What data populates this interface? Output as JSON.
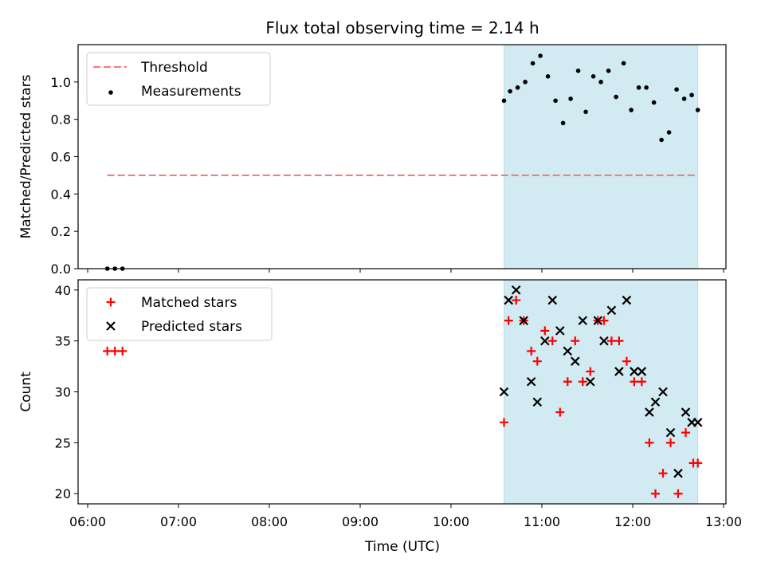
{
  "figure": {
    "title": "Flux total observing time = 2.14 h",
    "xlabel": "Time (UTC)"
  },
  "colors": {
    "background": "#ffffff",
    "shade": "#add8e6",
    "threshold": "#f08080",
    "measurements": "#000000",
    "matched": "#ff0000",
    "predicted": "#000000"
  },
  "chart_data": [
    {
      "type": "scatter",
      "panel": "top",
      "ylabel": "Matched/Predicted stars",
      "xlim": [
        "06:00",
        "13:00"
      ],
      "ylim": [
        0,
        1.2
      ],
      "x_ticks": [
        "06:00",
        "07:00",
        "08:00",
        "09:00",
        "10:00",
        "11:00",
        "12:00",
        "13:00"
      ],
      "y_ticks": [
        "0.0",
        "0.2",
        "0.4",
        "0.6",
        "0.8",
        "1.0"
      ],
      "shaded_interval": [
        "10:35",
        "12:43"
      ],
      "legend_position": "upper left",
      "legend": [
        "Threshold",
        "Measurements"
      ],
      "series": [
        {
          "name": "Threshold",
          "type": "dashed-line",
          "x": [
            "06:13",
            "12:43"
          ],
          "y": [
            0.5,
            0.5
          ]
        },
        {
          "name": "Measurements",
          "type": "scatter",
          "x": [
            "06:13",
            "06:18",
            "06:23",
            "10:35",
            "10:39",
            "10:44",
            "10:49",
            "10:54",
            "10:59",
            "11:04",
            "11:09",
            "11:14",
            "11:19",
            "11:24",
            "11:29",
            "11:34",
            "11:39",
            "11:44",
            "11:49",
            "11:54",
            "11:59",
            "12:04",
            "12:09",
            "12:14",
            "12:19",
            "12:24",
            "12:29",
            "12:34",
            "12:39",
            "12:43"
          ],
          "y": [
            0,
            0,
            0,
            0.9,
            0.95,
            0.97,
            1.0,
            1.1,
            1.14,
            1.03,
            0.9,
            0.78,
            0.91,
            1.06,
            0.84,
            1.03,
            1.0,
            1.06,
            0.92,
            1.1,
            0.85,
            0.97,
            0.97,
            0.89,
            0.69,
            0.73,
            0.96,
            0.91,
            0.93,
            0.85
          ]
        }
      ]
    },
    {
      "type": "scatter",
      "panel": "bottom",
      "ylabel": "Count",
      "xlim": [
        "06:00",
        "13:00"
      ],
      "ylim": [
        19,
        41
      ],
      "x_ticks": [
        "06:00",
        "07:00",
        "08:00",
        "09:00",
        "10:00",
        "11:00",
        "12:00",
        "13:00"
      ],
      "y_ticks": [
        "20",
        "25",
        "30",
        "35",
        "40"
      ],
      "shaded_interval": [
        "10:35",
        "12:43"
      ],
      "legend_position": "upper left",
      "legend": [
        "Matched stars",
        "Predicted stars"
      ],
      "series": [
        {
          "name": "Matched stars",
          "marker": "+",
          "x": [
            "06:13",
            "06:18",
            "06:23",
            "10:35",
            "10:38",
            "10:43",
            "10:48",
            "10:53",
            "10:57",
            "11:02",
            "11:07",
            "11:12",
            "11:17",
            "11:22",
            "11:27",
            "11:32",
            "11:37",
            "11:41",
            "11:46",
            "11:51",
            "11:56",
            "12:01",
            "12:06",
            "12:11",
            "12:15",
            "12:20",
            "12:25",
            "12:30",
            "12:35",
            "12:40",
            "12:43"
          ],
          "y": [
            34,
            34,
            34,
            27,
            37,
            39,
            37,
            34,
            33,
            36,
            35,
            28,
            31,
            35,
            31,
            32,
            37,
            37,
            35,
            35,
            33,
            31,
            31,
            25,
            20,
            22,
            25,
            20,
            26,
            23,
            23
          ]
        },
        {
          "name": "Predicted stars",
          "marker": "x",
          "x": [
            "10:35",
            "10:38",
            "10:43",
            "10:48",
            "10:53",
            "10:57",
            "11:02",
            "11:07",
            "11:12",
            "11:17",
            "11:22",
            "11:27",
            "11:32",
            "11:37",
            "11:41",
            "11:46",
            "11:51",
            "11:56",
            "12:01",
            "12:06",
            "12:11",
            "12:15",
            "12:20",
            "12:25",
            "12:30",
            "12:35",
            "12:39",
            "12:43"
          ],
          "y": [
            30,
            39,
            40,
            37,
            31,
            29,
            35,
            39,
            36,
            34,
            33,
            37,
            31,
            37,
            35,
            38,
            32,
            39,
            32,
            32,
            28,
            29,
            30,
            26,
            22,
            28,
            27,
            27
          ]
        }
      ]
    }
  ]
}
